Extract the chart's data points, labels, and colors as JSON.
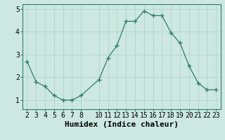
{
  "x": [
    2,
    3,
    4,
    5,
    6,
    7,
    8,
    10,
    11,
    12,
    13,
    14,
    15,
    16,
    17,
    18,
    19,
    20,
    21,
    22,
    23
  ],
  "y": [
    2.7,
    1.8,
    1.6,
    1.2,
    1.0,
    1.0,
    1.2,
    1.9,
    2.85,
    3.4,
    4.45,
    4.45,
    4.9,
    4.7,
    4.7,
    3.95,
    3.5,
    2.5,
    1.75,
    1.45,
    1.45
  ],
  "line_color": "#2e7d6e",
  "marker": "o",
  "marker_size": 2.5,
  "bg_color": "#cce8e0",
  "grid_color": "#b0d5cc",
  "xlabel": "Humidex (Indice chaleur)",
  "xlabel_fontsize": 8,
  "tick_fontsize": 7,
  "ylim": [
    0.6,
    5.2
  ],
  "xlim": [
    1.5,
    23.5
  ],
  "yticks": [
    1,
    2,
    3,
    4,
    5
  ],
  "xticks": [
    2,
    3,
    4,
    5,
    6,
    7,
    8,
    10,
    11,
    12,
    13,
    14,
    15,
    16,
    17,
    18,
    19,
    20,
    21,
    22,
    23
  ]
}
